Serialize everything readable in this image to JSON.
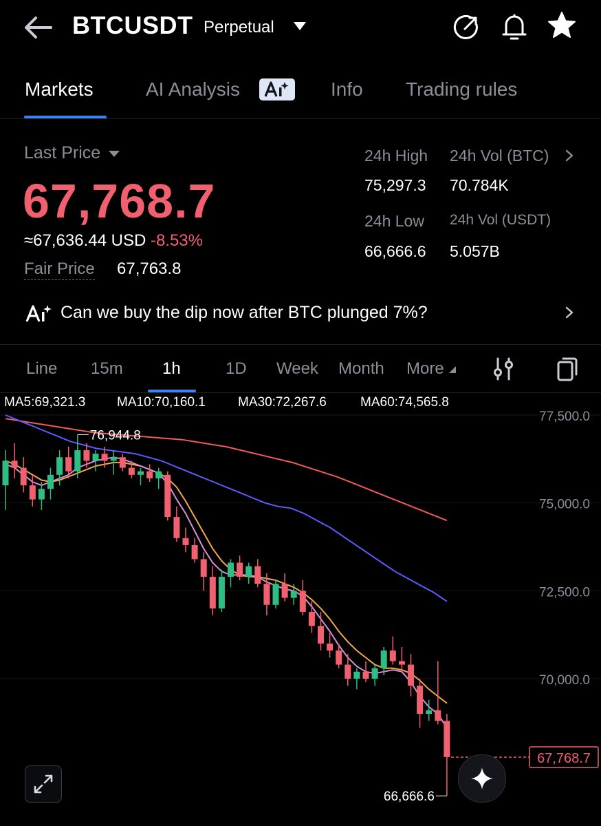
{
  "header": {
    "symbol": "BTCUSDT",
    "contract_type": "Perpetual",
    "icons": [
      "back-arrow-icon",
      "chevron-down-icon",
      "share-icon",
      "bell-icon",
      "star-icon"
    ]
  },
  "tabs": [
    {
      "label": "Markets",
      "active": true
    },
    {
      "label": "AI Analysis",
      "badge": "AI"
    },
    {
      "label": "Info"
    },
    {
      "label": "Trading rules"
    }
  ],
  "price": {
    "last_label": "Last Price",
    "last_price": "67,768.7",
    "usd_equiv": "≈67,636.44 USD",
    "change_pct": "-8.53%",
    "fair_label": "Fair Price",
    "fair_price": "67,763.8"
  },
  "stats": {
    "high_label": "24h High",
    "high_value": "75,297.3",
    "vol_btc_label": "24h Vol (BTC)",
    "vol_btc_value": "70.784K",
    "low_label": "24h Low",
    "low_value": "66,666.6",
    "vol_usdt_label": "24h Vol  (USDT)",
    "vol_usdt_value": "5.057B"
  },
  "ai_banner": {
    "question": "Can we buy the dip now after BTC plunged 7%?"
  },
  "timeframes": [
    {
      "label": "Line"
    },
    {
      "label": "15m"
    },
    {
      "label": "1h",
      "active": true
    },
    {
      "label": "1D"
    },
    {
      "label": "Week"
    },
    {
      "label": "Month"
    },
    {
      "label": "More"
    }
  ],
  "indicators": {
    "ma5": "MA5:69,321.3",
    "ma10": "MA10:70,160.1",
    "ma30": "MA30:72,267.6",
    "ma60": "MA60:74,565.8"
  },
  "colors": {
    "up": "#2ebd85",
    "down": "#f0606e",
    "ma5": "#d98fd8",
    "ma10": "#f2a94a",
    "ma30": "#5b5bff",
    "ma60": "#ef5a5a",
    "accent": "#3b82f6"
  },
  "chart_data": {
    "type": "candlestick",
    "interval": "1h",
    "y_ticks": [
      "77,500.0",
      "75,000.0",
      "72,500.0",
      "70,000.0"
    ],
    "ylim": [
      66300,
      78300
    ],
    "high_marker": "76,944.8",
    "low_marker": "66,666.6",
    "current_price_label": "67,768.7",
    "current_price": 67768.7,
    "candles": [
      {
        "o": 75500,
        "h": 76500,
        "l": 74800,
        "c": 76200
      },
      {
        "o": 76200,
        "h": 76700,
        "l": 75700,
        "c": 76000
      },
      {
        "o": 76000,
        "h": 76300,
        "l": 75300,
        "c": 75500
      },
      {
        "o": 75500,
        "h": 75800,
        "l": 74900,
        "c": 75100
      },
      {
        "o": 75100,
        "h": 75600,
        "l": 74800,
        "c": 75400
      },
      {
        "o": 75400,
        "h": 76000,
        "l": 75100,
        "c": 75800
      },
      {
        "o": 75800,
        "h": 76500,
        "l": 75500,
        "c": 76300
      },
      {
        "o": 76300,
        "h": 76600,
        "l": 75700,
        "c": 75900
      },
      {
        "o": 75900,
        "h": 76944.8,
        "l": 75700,
        "c": 76500
      },
      {
        "o": 76500,
        "h": 76700,
        "l": 76000,
        "c": 76200
      },
      {
        "o": 76200,
        "h": 76500,
        "l": 75900,
        "c": 76400
      },
      {
        "o": 76400,
        "h": 76600,
        "l": 76000,
        "c": 76200
      },
      {
        "o": 76200,
        "h": 76500,
        "l": 75800,
        "c": 76300
      },
      {
        "o": 76300,
        "h": 76400,
        "l": 75900,
        "c": 76000
      },
      {
        "o": 76000,
        "h": 76200,
        "l": 75700,
        "c": 75800
      },
      {
        "o": 75800,
        "h": 76000,
        "l": 75500,
        "c": 75900
      },
      {
        "o": 75900,
        "h": 76100,
        "l": 75600,
        "c": 75700
      },
      {
        "o": 75700,
        "h": 76000,
        "l": 75400,
        "c": 75900
      },
      {
        "o": 75800,
        "h": 75900,
        "l": 74500,
        "c": 74600
      },
      {
        "o": 74600,
        "h": 74900,
        "l": 73900,
        "c": 74000
      },
      {
        "o": 74000,
        "h": 74300,
        "l": 73600,
        "c": 73800
      },
      {
        "o": 73800,
        "h": 74000,
        "l": 73300,
        "c": 73400
      },
      {
        "o": 73400,
        "h": 73600,
        "l": 72500,
        "c": 72900
      },
      {
        "o": 72900,
        "h": 73200,
        "l": 71800,
        "c": 72000
      },
      {
        "o": 72000,
        "h": 73100,
        "l": 71900,
        "c": 72900
      },
      {
        "o": 72900,
        "h": 73400,
        "l": 72600,
        "c": 73300
      },
      {
        "o": 73300,
        "h": 73500,
        "l": 72800,
        "c": 72900
      },
      {
        "o": 72900,
        "h": 73300,
        "l": 72700,
        "c": 73200
      },
      {
        "o": 73200,
        "h": 73400,
        "l": 72600,
        "c": 72700
      },
      {
        "o": 72700,
        "h": 73000,
        "l": 71800,
        "c": 72100
      },
      {
        "o": 72100,
        "h": 72800,
        "l": 72000,
        "c": 72700
      },
      {
        "o": 72700,
        "h": 73000,
        "l": 72200,
        "c": 72300
      },
      {
        "o": 72300,
        "h": 72700,
        "l": 72100,
        "c": 72500
      },
      {
        "o": 72500,
        "h": 72800,
        "l": 71800,
        "c": 71900
      },
      {
        "o": 71900,
        "h": 72200,
        "l": 71300,
        "c": 71500
      },
      {
        "o": 71500,
        "h": 71900,
        "l": 70800,
        "c": 71000
      },
      {
        "o": 71000,
        "h": 71300,
        "l": 70600,
        "c": 70800
      },
      {
        "o": 70800,
        "h": 71000,
        "l": 70300,
        "c": 70400
      },
      {
        "o": 70400,
        "h": 70700,
        "l": 69800,
        "c": 70000
      },
      {
        "o": 70000,
        "h": 70300,
        "l": 69700,
        "c": 70200
      },
      {
        "o": 70200,
        "h": 70500,
        "l": 69900,
        "c": 70000
      },
      {
        "o": 70000,
        "h": 70400,
        "l": 69800,
        "c": 70300
      },
      {
        "o": 70300,
        "h": 70900,
        "l": 70100,
        "c": 70800
      },
      {
        "o": 70800,
        "h": 71200,
        "l": 70400,
        "c": 70500
      },
      {
        "o": 70500,
        "h": 70900,
        "l": 70200,
        "c": 70400
      },
      {
        "o": 70400,
        "h": 70700,
        "l": 69500,
        "c": 69800
      },
      {
        "o": 69800,
        "h": 70000,
        "l": 68600,
        "c": 69000
      },
      {
        "o": 69000,
        "h": 69400,
        "l": 68800,
        "c": 69100
      },
      {
        "o": 69100,
        "h": 70500,
        "l": 68700,
        "c": 68800
      },
      {
        "o": 68800,
        "h": 69000,
        "l": 66666.6,
        "c": 67768.7
      }
    ],
    "ma5": [
      76100,
      76000,
      75800,
      75600,
      75500,
      75600,
      75700,
      75800,
      76000,
      76100,
      76200,
      76250,
      76300,
      76250,
      76150,
      76050,
      75950,
      75850,
      75550,
      75100,
      74700,
      74200,
      73700,
      73300,
      73050,
      72950,
      72950,
      72950,
      72900,
      72750,
      72650,
      72550,
      72500,
      72350,
      72050,
      71700,
      71350,
      70950,
      70600,
      70350,
      70200,
      70150,
      70200,
      70250,
      70200,
      69900,
      69500,
      69200,
      69000,
      68600
    ],
    "ma10": [
      76200,
      76100,
      75950,
      75800,
      75650,
      75600,
      75650,
      75750,
      75850,
      75950,
      76050,
      76100,
      76150,
      76150,
      76100,
      76050,
      75950,
      75850,
      75700,
      75450,
      75050,
      74600,
      74150,
      73700,
      73350,
      73100,
      72950,
      72900,
      72900,
      72850,
      72800,
      72700,
      72600,
      72450,
      72250,
      72000,
      71700,
      71350,
      71050,
      70800,
      70600,
      70400,
      70300,
      70300,
      70250,
      70150,
      69950,
      69700,
      69500,
      69300
    ],
    "ma30": [
      77500,
      77350,
      77200,
      77050,
      76900,
      76750,
      76650,
      76550,
      76500,
      76450,
      76400,
      76300,
      76200,
      76050,
      75900,
      75750,
      75600,
      75450,
      75300,
      75150,
      75000,
      74900,
      74850,
      74700,
      74500,
      74300,
      74050,
      73800,
      73550,
      73300,
      73050,
      72850,
      72650,
      72450,
      72200
    ],
    "ma60": [
      77400,
      77300,
      77200,
      77100,
      77000,
      76950,
      76900,
      76850,
      76800,
      76700,
      76600,
      76450,
      76300,
      76150,
      75950,
      75750,
      75500,
      75250,
      75000,
      74750,
      74500
    ],
    "ma_start_x": {
      "ma5": 0,
      "ma10": 0,
      "ma30": 0,
      "ma60": 0
    }
  }
}
